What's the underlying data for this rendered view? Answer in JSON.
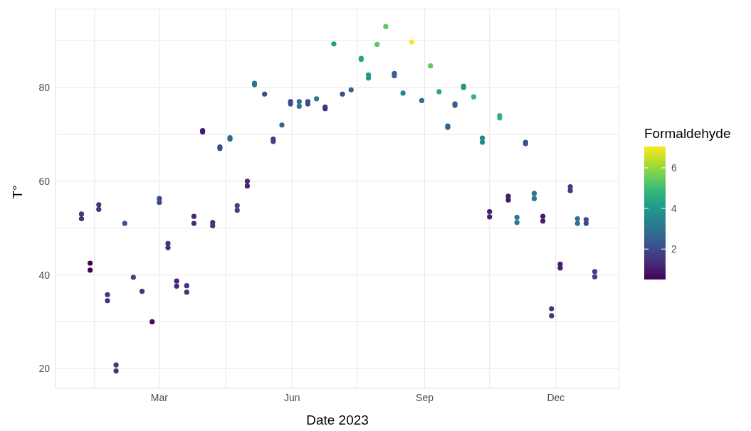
{
  "chart_data": {
    "type": "scatter",
    "xlabel": "Date 2023",
    "ylabel": "T°",
    "clabel": "Formaldehyde",
    "marker": "circle",
    "grid": true,
    "x": [
      "2023-01-06",
      "2023-01-06",
      "2023-01-12",
      "2023-01-12",
      "2023-01-18",
      "2023-01-18",
      "2023-01-24",
      "2023-01-24",
      "2023-01-30",
      "2023-01-30",
      "2023-02-05",
      "2023-02-11",
      "2023-02-17",
      "2023-02-24",
      "2023-03-01",
      "2023-03-01",
      "2023-03-07",
      "2023-03-07",
      "2023-03-13",
      "2023-03-13",
      "2023-03-20",
      "2023-03-20",
      "2023-03-25",
      "2023-03-25",
      "2023-03-31",
      "2023-03-31",
      "2023-04-07",
      "2023-04-07",
      "2023-04-12",
      "2023-04-12",
      "2023-04-19",
      "2023-04-19",
      "2023-04-24",
      "2023-04-24",
      "2023-05-01",
      "2023-05-01",
      "2023-05-06",
      "2023-05-06",
      "2023-05-13",
      "2023-05-19",
      "2023-05-19",
      "2023-05-25",
      "2023-05-31",
      "2023-05-31",
      "2023-06-06",
      "2023-06-06",
      "2023-06-12",
      "2023-06-12",
      "2023-06-18",
      "2023-06-24",
      "2023-06-24",
      "2023-06-30",
      "2023-07-06",
      "2023-07-12",
      "2023-07-19",
      "2023-07-19",
      "2023-07-24",
      "2023-07-24",
      "2023-07-30",
      "2023-08-05",
      "2023-08-11",
      "2023-08-11",
      "2023-08-17",
      "2023-08-23",
      "2023-08-30",
      "2023-09-05",
      "2023-09-11",
      "2023-09-17",
      "2023-09-17",
      "2023-09-22",
      "2023-09-22",
      "2023-09-28",
      "2023-09-28",
      "2023-10-05",
      "2023-10-11",
      "2023-10-11",
      "2023-10-16",
      "2023-10-16",
      "2023-10-23",
      "2023-10-23",
      "2023-10-29",
      "2023-10-29",
      "2023-11-04",
      "2023-11-04",
      "2023-11-10",
      "2023-11-10",
      "2023-11-16",
      "2023-11-16",
      "2023-11-22",
      "2023-11-22",
      "2023-11-28",
      "2023-11-28",
      "2023-12-04",
      "2023-12-04",
      "2023-12-11",
      "2023-12-11",
      "2023-12-16",
      "2023-12-16",
      "2023-12-22",
      "2023-12-22",
      "2023-12-28",
      "2023-12-28"
    ],
    "values": [
      52,
      53,
      41,
      42.5,
      54,
      55,
      34.5,
      35.8,
      19.5,
      20.8,
      51,
      39.5,
      36.5,
      30,
      55.5,
      56.3,
      45.8,
      46.7,
      37.6,
      38.7,
      36.3,
      37.7,
      51,
      52.5,
      70.5,
      70.8,
      50.5,
      51.2,
      67,
      67.3,
      69,
      69.3,
      53.8,
      54.8,
      59,
      60,
      80.6,
      80.9,
      78.6,
      68.5,
      69,
      72,
      76.5,
      77,
      76,
      77,
      76.5,
      77,
      77.6,
      75.5,
      75.8,
      89.3,
      78.6,
      79.5,
      86,
      86.2,
      82,
      82.7,
      89.2,
      93,
      82.5,
      83,
      78.8,
      89.7,
      77.2,
      84.6,
      79.1,
      71.5,
      71.8,
      76.2,
      76.5,
      80,
      80.3,
      78,
      68.3,
      69.2,
      52.4,
      53.5,
      73.5,
      74,
      56,
      56.8,
      51.2,
      52.3,
      68,
      68.3,
      56.3,
      57.4,
      51.5,
      52.5,
      31.3,
      32.8,
      41.5,
      42.3,
      58,
      58.8,
      51,
      52,
      51,
      51.8,
      39.6,
      40.7
    ],
    "cvalues": [
      1.5,
      1.5,
      0.5,
      0.5,
      1.5,
      1.5,
      1.5,
      1.5,
      1.5,
      1.5,
      2.2,
      1.8,
      1.5,
      0.7,
      2,
      2,
      1.5,
      1.5,
      1.2,
      1.2,
      1.5,
      1.5,
      1.3,
      1.3,
      1,
      1,
      1.5,
      1.5,
      2,
      2,
      2.7,
      2.7,
      1.8,
      1.8,
      1.2,
      1.2,
      3,
      3,
      2,
      1.7,
      1.7,
      2.6,
      2,
      2,
      3,
      3,
      2,
      2,
      3.2,
      1.5,
      1.5,
      4.2,
      2,
      2.6,
      4.3,
      4.3,
      4,
      4,
      5.4,
      5.4,
      2.5,
      2.5,
      3.6,
      7,
      3,
      5.5,
      4.5,
      2.6,
      2.6,
      2.5,
      2.5,
      4,
      4,
      4.8,
      3.6,
      3.6,
      1,
      1,
      4.8,
      4.8,
      1,
      1,
      3,
      3,
      2.2,
      2.2,
      3,
      3,
      1,
      1,
      1.5,
      1.5,
      1,
      1,
      1.7,
      1.7,
      3,
      3,
      2,
      2,
      1.8,
      1.8
    ],
    "xlim": [
      "2022-12-19",
      "2024-01-14"
    ],
    "xticks": [
      {
        "value": "2023-01-15",
        "label": null
      },
      {
        "value": "2023-03-01",
        "label": "Mar"
      },
      {
        "value": "2023-04-16",
        "label": null
      },
      {
        "value": "2023-06-01",
        "label": "Jun"
      },
      {
        "value": "2023-07-16",
        "label": null
      },
      {
        "value": "2023-09-01",
        "label": "Sep"
      },
      {
        "value": "2023-10-16",
        "label": null
      },
      {
        "value": "2023-12-01",
        "label": "Dec"
      }
    ],
    "ylim": [
      15.8,
      96.7
    ],
    "yticks": [
      20,
      {
        "value": 30,
        "label": null
      },
      40,
      {
        "value": 50,
        "label": null
      },
      60,
      {
        "value": 70,
        "label": null
      },
      80,
      {
        "value": 90,
        "label": null
      }
    ],
    "clim": [
      0.5,
      7.05
    ],
    "cticks": [
      2,
      4,
      6
    ]
  }
}
